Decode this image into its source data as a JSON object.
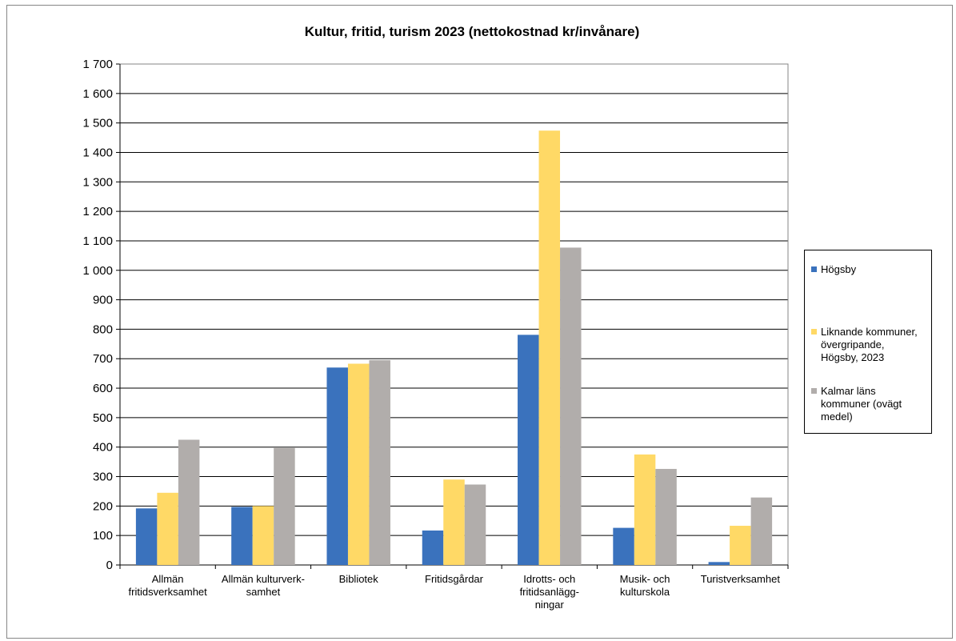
{
  "chart_data": {
    "type": "bar",
    "title": "Kultur, fritid, turism 2023 (nettokostnad kr/invånare)",
    "xlabel": "",
    "ylabel": "",
    "ylim": [
      0,
      1700
    ],
    "y_ticks": [
      "0",
      "100",
      "200",
      "300",
      "400",
      "500",
      "600",
      "700",
      "800",
      "900",
      "1 000",
      "1 100",
      "1 200",
      "1 300",
      "1 400",
      "1 500",
      "1 600",
      "1 700"
    ],
    "grid": true,
    "legend_position": "right",
    "categories": [
      [
        "Allmän",
        "fritidsverksamhet"
      ],
      [
        "Allmän kulturverk-",
        "samhet"
      ],
      [
        "Bibliotek"
      ],
      [
        "Fritidsgårdar"
      ],
      [
        "Idrotts- och",
        "fritidsanlägg-",
        "ningar"
      ],
      [
        "Musik- och",
        "kulturskola"
      ],
      [
        "Turistverksamhet"
      ]
    ],
    "series": [
      {
        "name": "Högsby",
        "color": "#3a72bd",
        "values": [
          192,
          197,
          670,
          117,
          781,
          126,
          10
        ]
      },
      {
        "name": "Liknande kommuner, övergripande, Högsby, 2023",
        "color": "#ffd966",
        "values": [
          245,
          200,
          683,
          290,
          1474,
          375,
          133
        ]
      },
      {
        "name": "Kalmar läns kommuner (ovägt medel)",
        "color": "#b1adab",
        "values": [
          425,
          397,
          695,
          273,
          1077,
          326,
          229
        ]
      }
    ]
  },
  "legend": {
    "items": [
      {
        "lines": [
          "Högsby"
        ],
        "color": "#3a72bd"
      },
      {
        "lines": [
          "Liknande kommuner,",
          "övergripande,",
          "Högsby, 2023"
        ],
        "color": "#ffd966"
      },
      {
        "lines": [
          "Kalmar läns",
          "kommuner (ovägt",
          "medel)"
        ],
        "color": "#b1adab"
      }
    ]
  }
}
